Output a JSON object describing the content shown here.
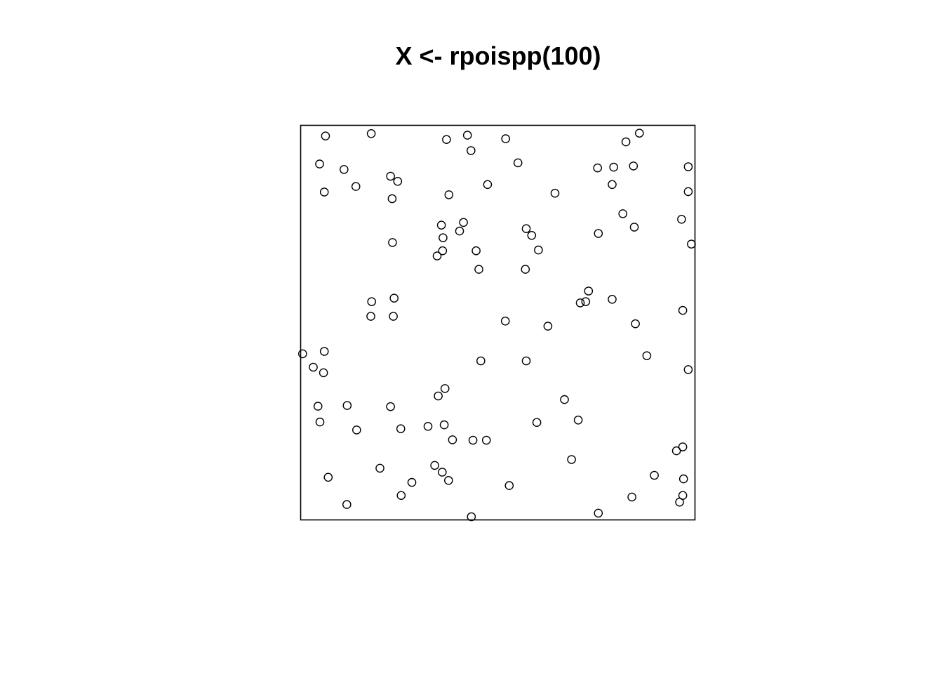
{
  "chart_data": {
    "type": "scatter",
    "title": "X <- rpoispp(100)",
    "xlabel": "",
    "ylabel": "",
    "xlim": [
      0,
      1
    ],
    "ylim": [
      0,
      1
    ],
    "grid": false,
    "point_shape": "open-circle",
    "point_color": "#000000",
    "points": [
      {
        "x": 0.063,
        "y": 0.973
      },
      {
        "x": 0.179,
        "y": 0.979
      },
      {
        "x": 0.37,
        "y": 0.964
      },
      {
        "x": 0.423,
        "y": 0.975
      },
      {
        "x": 0.52,
        "y": 0.966
      },
      {
        "x": 0.432,
        "y": 0.936
      },
      {
        "x": 0.859,
        "y": 0.98
      },
      {
        "x": 0.825,
        "y": 0.958
      },
      {
        "x": 0.048,
        "y": 0.902
      },
      {
        "x": 0.11,
        "y": 0.888
      },
      {
        "x": 0.228,
        "y": 0.871
      },
      {
        "x": 0.246,
        "y": 0.858
      },
      {
        "x": 0.14,
        "y": 0.845
      },
      {
        "x": 0.06,
        "y": 0.831
      },
      {
        "x": 0.232,
        "y": 0.814
      },
      {
        "x": 0.376,
        "y": 0.824
      },
      {
        "x": 0.474,
        "y": 0.85
      },
      {
        "x": 0.551,
        "y": 0.905
      },
      {
        "x": 0.645,
        "y": 0.828
      },
      {
        "x": 0.753,
        "y": 0.892
      },
      {
        "x": 0.794,
        "y": 0.894
      },
      {
        "x": 0.844,
        "y": 0.897
      },
      {
        "x": 0.79,
        "y": 0.85
      },
      {
        "x": 0.983,
        "y": 0.895
      },
      {
        "x": 0.983,
        "y": 0.832
      },
      {
        "x": 0.817,
        "y": 0.776
      },
      {
        "x": 0.846,
        "y": 0.742
      },
      {
        "x": 0.755,
        "y": 0.726
      },
      {
        "x": 0.966,
        "y": 0.762
      },
      {
        "x": 0.991,
        "y": 0.699
      },
      {
        "x": 0.357,
        "y": 0.747
      },
      {
        "x": 0.413,
        "y": 0.754
      },
      {
        "x": 0.403,
        "y": 0.732
      },
      {
        "x": 0.361,
        "y": 0.715
      },
      {
        "x": 0.36,
        "y": 0.682
      },
      {
        "x": 0.346,
        "y": 0.669
      },
      {
        "x": 0.233,
        "y": 0.703
      },
      {
        "x": 0.445,
        "y": 0.682
      },
      {
        "x": 0.452,
        "y": 0.635
      },
      {
        "x": 0.572,
        "y": 0.738
      },
      {
        "x": 0.586,
        "y": 0.721
      },
      {
        "x": 0.603,
        "y": 0.684
      },
      {
        "x": 0.57,
        "y": 0.635
      },
      {
        "x": 0.73,
        "y": 0.58
      },
      {
        "x": 0.723,
        "y": 0.553
      },
      {
        "x": 0.709,
        "y": 0.55
      },
      {
        "x": 0.79,
        "y": 0.559
      },
      {
        "x": 0.969,
        "y": 0.531
      },
      {
        "x": 0.237,
        "y": 0.562
      },
      {
        "x": 0.18,
        "y": 0.553
      },
      {
        "x": 0.178,
        "y": 0.516
      },
      {
        "x": 0.235,
        "y": 0.516
      },
      {
        "x": 0.519,
        "y": 0.504
      },
      {
        "x": 0.627,
        "y": 0.491
      },
      {
        "x": 0.849,
        "y": 0.497
      },
      {
        "x": 0.005,
        "y": 0.421
      },
      {
        "x": 0.06,
        "y": 0.427
      },
      {
        "x": 0.032,
        "y": 0.387
      },
      {
        "x": 0.058,
        "y": 0.373
      },
      {
        "x": 0.457,
        "y": 0.403
      },
      {
        "x": 0.572,
        "y": 0.403
      },
      {
        "x": 0.878,
        "y": 0.416
      },
      {
        "x": 0.983,
        "y": 0.381
      },
      {
        "x": 0.044,
        "y": 0.288
      },
      {
        "x": 0.118,
        "y": 0.29
      },
      {
        "x": 0.228,
        "y": 0.287
      },
      {
        "x": 0.366,
        "y": 0.333
      },
      {
        "x": 0.349,
        "y": 0.314
      },
      {
        "x": 0.669,
        "y": 0.305
      },
      {
        "x": 0.049,
        "y": 0.248
      },
      {
        "x": 0.142,
        "y": 0.228
      },
      {
        "x": 0.254,
        "y": 0.231
      },
      {
        "x": 0.323,
        "y": 0.237
      },
      {
        "x": 0.364,
        "y": 0.241
      },
      {
        "x": 0.385,
        "y": 0.203
      },
      {
        "x": 0.437,
        "y": 0.202
      },
      {
        "x": 0.471,
        "y": 0.202
      },
      {
        "x": 0.599,
        "y": 0.247
      },
      {
        "x": 0.704,
        "y": 0.253
      },
      {
        "x": 0.687,
        "y": 0.153
      },
      {
        "x": 0.953,
        "y": 0.175
      },
      {
        "x": 0.969,
        "y": 0.185
      },
      {
        "x": 0.201,
        "y": 0.131
      },
      {
        "x": 0.34,
        "y": 0.138
      },
      {
        "x": 0.359,
        "y": 0.121
      },
      {
        "x": 0.375,
        "y": 0.1
      },
      {
        "x": 0.07,
        "y": 0.108
      },
      {
        "x": 0.282,
        "y": 0.095
      },
      {
        "x": 0.529,
        "y": 0.087
      },
      {
        "x": 0.897,
        "y": 0.113
      },
      {
        "x": 0.971,
        "y": 0.104
      },
      {
        "x": 0.255,
        "y": 0.062
      },
      {
        "x": 0.117,
        "y": 0.039
      },
      {
        "x": 0.433,
        "y": 0.008
      },
      {
        "x": 0.755,
        "y": 0.017
      },
      {
        "x": 0.84,
        "y": 0.058
      },
      {
        "x": 0.969,
        "y": 0.062
      },
      {
        "x": 0.961,
        "y": 0.045
      }
    ]
  }
}
